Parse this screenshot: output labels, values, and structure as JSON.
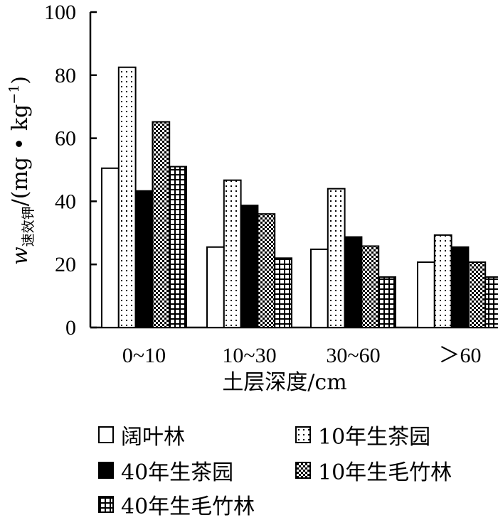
{
  "chart_data": {
    "type": "bar",
    "categories": [
      "0~10",
      "10~30",
      "30~60",
      "＞60"
    ],
    "series": [
      {
        "name": "阔叶林",
        "values": [
          50.5,
          25.5,
          24.8,
          20.7
        ],
        "pattern": "white",
        "icon": "open-square"
      },
      {
        "name": "10年生茶园",
        "values": [
          82.5,
          46.7,
          44.0,
          29.3
        ],
        "pattern": "dots",
        "icon": "dotted-square"
      },
      {
        "name": "40年生茶园",
        "values": [
          43.3,
          38.7,
          28.7,
          25.5
        ],
        "pattern": "black",
        "icon": "filled-square"
      },
      {
        "name": "10年生毛竹林",
        "values": [
          65.2,
          36.0,
          25.8,
          20.7
        ],
        "pattern": "crosshatch",
        "icon": "crosshatch-square"
      },
      {
        "name": "40年生毛竹林",
        "values": [
          51.0,
          22.0,
          16.0,
          16.0
        ],
        "pattern": "grid",
        "icon": "grid-square"
      }
    ],
    "xlabel": "土层深度/cm",
    "ylabel_main": "w",
    "ylabel_sub": "速效钾",
    "ylabel_unit": "/(mg • kg",
    "ylabel_sup": "−1",
    "ylabel_close": ")",
    "ylim": [
      0,
      100
    ],
    "yticks": [
      0,
      20,
      40,
      60,
      80,
      100
    ],
    "grid": false,
    "legend_position": "bottom"
  }
}
